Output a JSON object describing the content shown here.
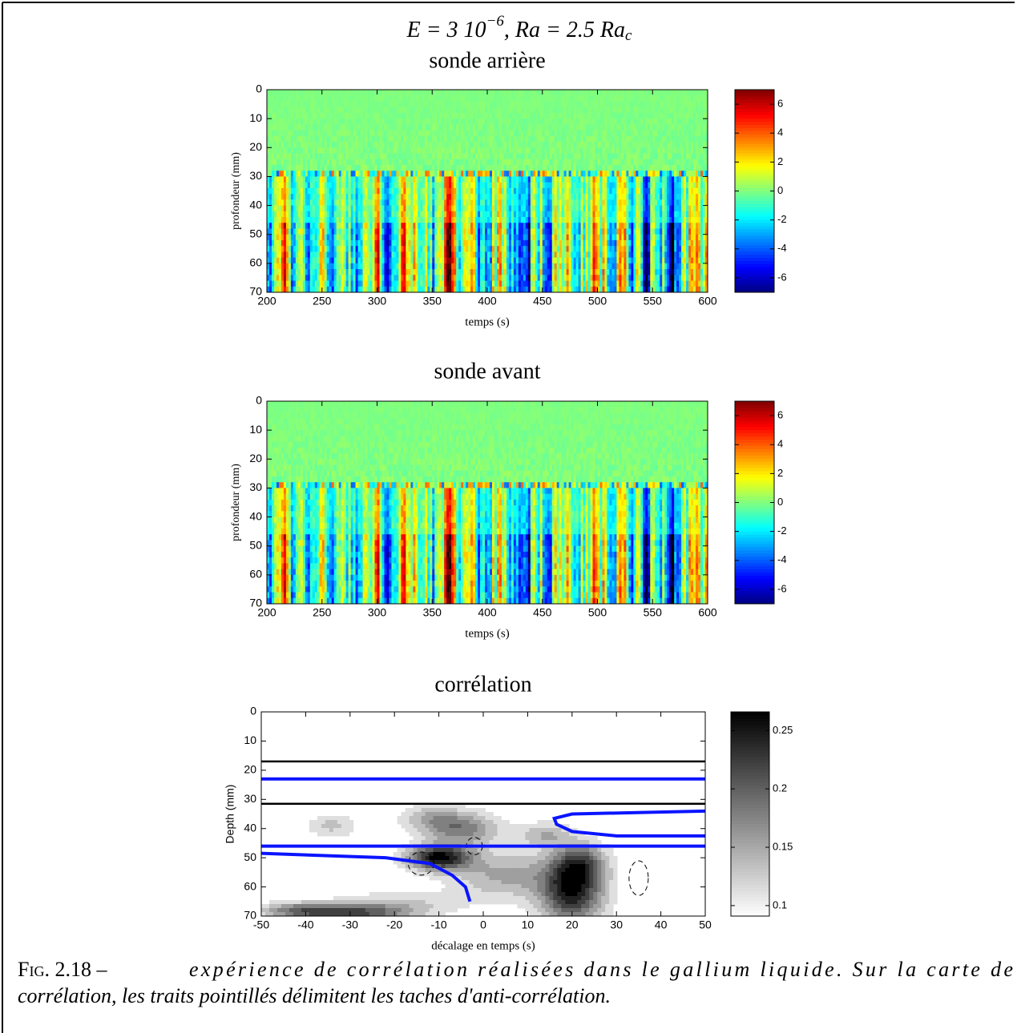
{
  "figure_title": [
    "E = 3 10",
    "−6",
    ", Ra = 2.5 Ra",
    "c"
  ],
  "chart_data": [
    {
      "type": "heatmap",
      "title": "sonde arrière",
      "xlabel": "temps (s)",
      "ylabel": "profondeur (mm)",
      "xlim": [
        200,
        600
      ],
      "xticks": [
        200,
        250,
        300,
        350,
        400,
        450,
        500,
        550,
        600
      ],
      "ylim": [
        0,
        70
      ],
      "y_reversed": true,
      "yticks": [
        0,
        10,
        20,
        30,
        40,
        50,
        60,
        70
      ],
      "colormap": "jet",
      "clim": [
        -7,
        7
      ],
      "cticks": [
        -6,
        -4,
        -2,
        0,
        2,
        4,
        6
      ]
    },
    {
      "type": "heatmap",
      "title": "sonde avant",
      "xlabel": "temps (s)",
      "ylabel": "profondeur (mm)",
      "xlim": [
        200,
        600
      ],
      "xticks": [
        200,
        250,
        300,
        350,
        400,
        450,
        500,
        550,
        600
      ],
      "ylim": [
        0,
        70
      ],
      "y_reversed": true,
      "yticks": [
        0,
        10,
        20,
        30,
        40,
        50,
        60,
        70
      ],
      "colormap": "jet",
      "clim": [
        -7,
        7
      ],
      "cticks": [
        -6,
        -4,
        -2,
        0,
        2,
        4,
        6
      ]
    },
    {
      "type": "contour",
      "title": "corrélation",
      "xlabel": "décalage en temps (s)",
      "ylabel": "Depth (mm)",
      "xlim": [
        -50,
        50
      ],
      "xticks": [
        -50,
        -40,
        -30,
        -20,
        -10,
        0,
        10,
        20,
        30,
        40,
        50
      ],
      "ylim": [
        0,
        70
      ],
      "y_reversed": true,
      "yticks": [
        0,
        10,
        20,
        30,
        40,
        50,
        60,
        70
      ],
      "colormap": "gray",
      "clim": [
        0.091,
        0.266
      ],
      "cticks": [
        0.1,
        0.15,
        0.2,
        0.25
      ]
    }
  ],
  "caption": {
    "label": "Fig. 2.18 –",
    "lines": [
      "expérience de corrélation réalisées dans le gallium liquide. Sur la carte de",
      "corrélation, les traits pointillés délimitent les taches d'anti-corrélation."
    ]
  }
}
